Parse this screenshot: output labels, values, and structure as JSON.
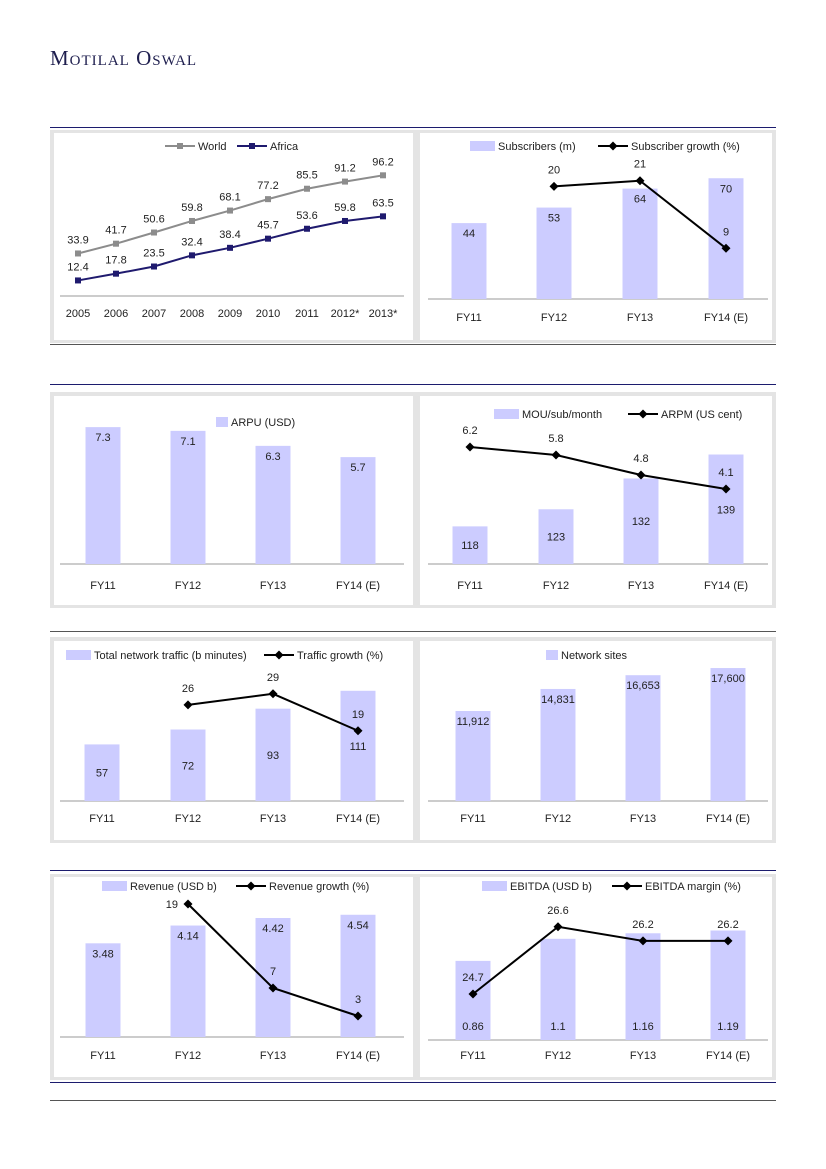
{
  "header": {
    "logo_text": "Motilal Oswal"
  },
  "colors": {
    "bar": "#ccccff",
    "line": "#000000",
    "world": "#8c8c8c",
    "africa": "#1f1a6e",
    "rule": "#1c1c6e",
    "panel": "#e4e4e4"
  },
  "chart_data": [
    {
      "type": "line",
      "categories": [
        "2005",
        "2006",
        "2007",
        "2008",
        "2009",
        "2010",
        "2011",
        "2012*",
        "2013*"
      ],
      "ylim": [
        0,
        110
      ],
      "legend": "top-center",
      "series": [
        {
          "name": "World",
          "values": [
            33.9,
            41.7,
            50.6,
            59.8,
            68.1,
            77.2,
            85.5,
            91.2,
            96.2
          ],
          "color": "#8c8c8c",
          "marker": "square"
        },
        {
          "name": "Africa",
          "values": [
            12.4,
            17.8,
            23.5,
            32.4,
            38.4,
            45.7,
            53.6,
            59.8,
            63.5
          ],
          "color": "#1f1a6e",
          "marker": "square"
        }
      ]
    },
    {
      "type": "bar+line",
      "categories": [
        "FY11",
        "FY12",
        "FY13",
        "FY14 (E)"
      ],
      "legend": "top-center",
      "bars": {
        "name": "Subscribers (m)",
        "values": [
          44,
          53,
          64,
          70
        ],
        "ylim": [
          0,
          80
        ]
      },
      "line": {
        "name": "Subscriber growth (%)",
        "values": [
          null,
          20,
          21,
          9
        ],
        "ylim": [
          0,
          24.5
        ]
      }
    },
    {
      "type": "bar",
      "categories": [
        "FY11",
        "FY12",
        "FY13",
        "FY14 (E)"
      ],
      "legend": "top-center",
      "bars": {
        "name": "ARPU (USD)",
        "values": [
          7.3,
          7.1,
          6.3,
          5.7
        ],
        "ylim": [
          0,
          8
        ]
      }
    },
    {
      "type": "bar+line",
      "categories": [
        "FY11",
        "FY12",
        "FY13",
        "FY14 (E)"
      ],
      "legend": "top-center",
      "bars": {
        "name": "MOU/sub/month",
        "values": [
          118,
          123,
          132,
          139
        ],
        "ylim": [
          107,
          145
        ]
      },
      "line": {
        "name": "ARPM (US cent)",
        "values": [
          6.2,
          5.8,
          4.8,
          4.1
        ],
        "ylim": [
          0.35,
          6.85
        ]
      }
    },
    {
      "type": "bar+line",
      "categories": [
        "FY11",
        "FY12",
        "FY13",
        "FY14 (E)"
      ],
      "legend": "top-center",
      "bars": {
        "name": "Total network traffic (b minutes)",
        "values": [
          57,
          72,
          93,
          111
        ],
        "ylim": [
          0,
          140
        ]
      },
      "line": {
        "name": "Traffic growth (%)",
        "values": [
          null,
          26,
          29,
          19
        ],
        "ylim": [
          0,
          37.6
        ]
      }
    },
    {
      "type": "bar",
      "categories": [
        "FY11",
        "FY12",
        "FY13",
        "FY14 (E)"
      ],
      "legend": "top-center",
      "bars": {
        "name": "Network sites",
        "values": [
          11912,
          14831,
          16653,
          17600
        ],
        "labels": [
          "11,912",
          "14,831",
          "16,653",
          "17,600"
        ],
        "ylim": [
          0,
          18400
        ]
      }
    },
    {
      "type": "bar+line",
      "categories": [
        "FY11",
        "FY12",
        "FY13",
        "FY14 (E)"
      ],
      "legend": "top-center",
      "bars": {
        "name": "Revenue (USD b)",
        "values": [
          3.48,
          4.14,
          4.42,
          4.54
        ],
        "ylim": [
          0,
          5.2
        ]
      },
      "line": {
        "name": "Revenue growth (%)",
        "values": [
          null,
          19,
          7,
          3
        ],
        "ylim": [
          0,
          20
        ]
      }
    },
    {
      "type": "bar+line",
      "categories": [
        "FY11",
        "FY12",
        "FY13",
        "FY14 (E)"
      ],
      "legend": "top-center",
      "bars": {
        "name": "EBITDA (USD b)",
        "values": [
          0.86,
          1.1,
          1.16,
          1.19
        ],
        "ylim": [
          0,
          1.5
        ]
      },
      "line": {
        "name": "EBITDA margin (%)",
        "values": [
          24.7,
          26.6,
          26.2,
          26.2
        ],
        "ylim": [
          23.4,
          27.3
        ]
      }
    }
  ]
}
